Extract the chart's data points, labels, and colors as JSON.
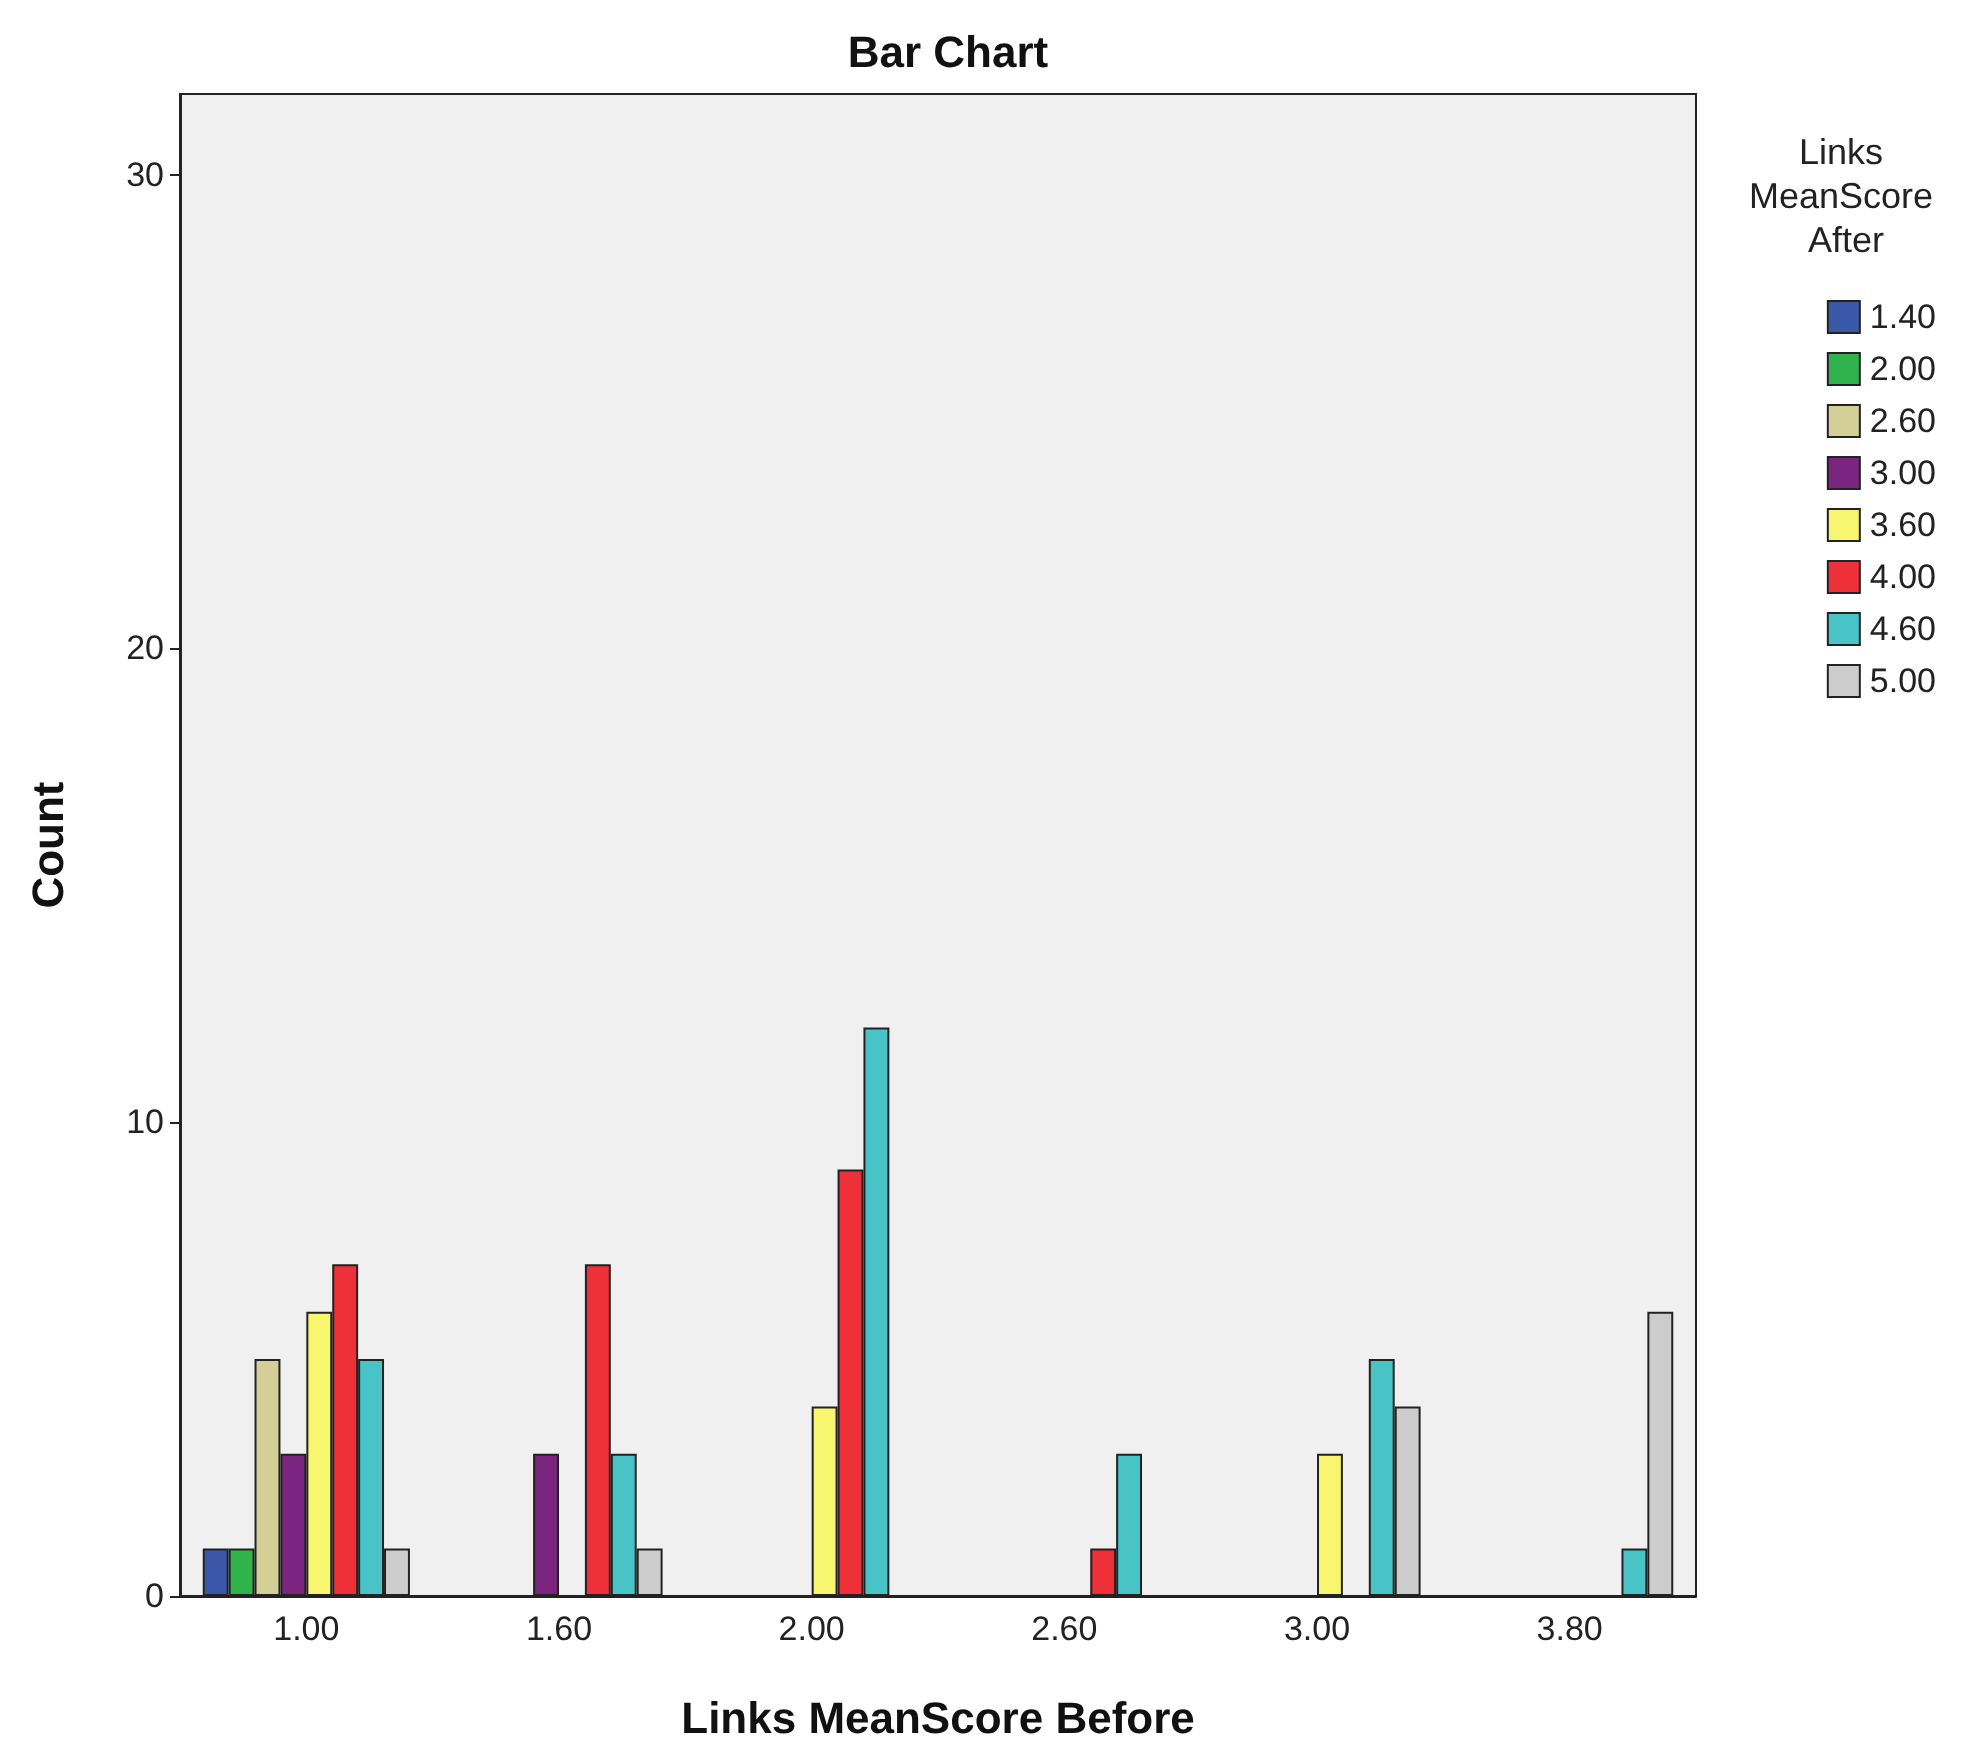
{
  "chart_data": {
    "type": "bar",
    "title": "Bar Chart",
    "xlabel": "Links MeanScore Before",
    "ylabel": "Count",
    "legend_title": "Links MeanScore After",
    "categories": [
      "1.00",
      "1.60",
      "2.00",
      "2.60",
      "3.00",
      "3.80"
    ],
    "series": [
      {
        "name": "1.40",
        "color": "#3b58a8",
        "values": [
          1,
          null,
          null,
          null,
          null,
          null
        ]
      },
      {
        "name": "2.00",
        "color": "#2fb34a",
        "values": [
          1,
          null,
          null,
          null,
          null,
          null
        ]
      },
      {
        "name": "2.60",
        "color": "#d4cf96",
        "values": [
          5,
          null,
          null,
          null,
          null,
          null
        ]
      },
      {
        "name": "3.00",
        "color": "#7a2580",
        "values": [
          3,
          3,
          null,
          null,
          null,
          null
        ]
      },
      {
        "name": "3.60",
        "color": "#f8f56e",
        "values": [
          6,
          null,
          4,
          null,
          3,
          null
        ]
      },
      {
        "name": "4.00",
        "color": "#ee3038",
        "values": [
          7,
          7,
          9,
          1,
          null,
          null
        ]
      },
      {
        "name": "4.60",
        "color": "#48c3c6",
        "values": [
          5,
          3,
          12,
          3,
          5,
          1
        ]
      },
      {
        "name": "5.00",
        "color": "#cccccc",
        "values": [
          1,
          1,
          null,
          null,
          4,
          6
        ]
      }
    ],
    "ylim": [
      0,
      31.7
    ],
    "yticks": [
      0,
      10,
      20,
      30
    ],
    "grid": false,
    "legend": "right"
  }
}
